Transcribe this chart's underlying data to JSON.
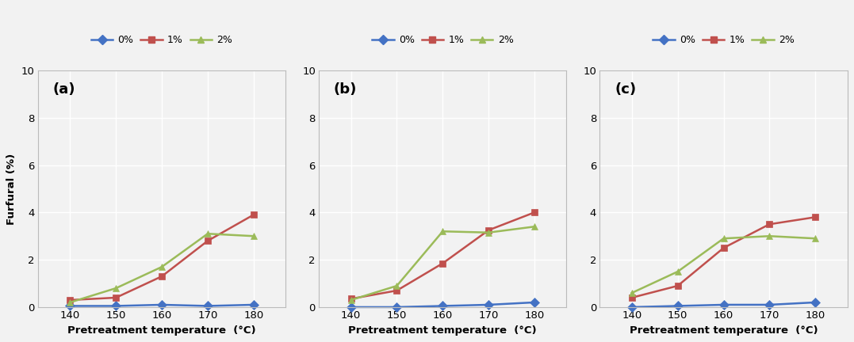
{
  "x": [
    140,
    150,
    160,
    170,
    180
  ],
  "panels": [
    {
      "label": "(a)",
      "series": {
        "0%": [
          0.05,
          0.05,
          0.1,
          0.05,
          0.1
        ],
        "1%": [
          0.3,
          0.4,
          1.3,
          2.8,
          3.9
        ],
        "2%": [
          0.2,
          0.8,
          1.7,
          3.1,
          3.0
        ]
      }
    },
    {
      "label": "(b)",
      "series": {
        "0%": [
          0.0,
          0.0,
          0.05,
          0.1,
          0.2
        ],
        "1%": [
          0.35,
          0.7,
          1.85,
          3.25,
          4.0
        ],
        "2%": [
          0.3,
          0.9,
          3.2,
          3.15,
          3.4
        ]
      }
    },
    {
      "label": "(c)",
      "series": {
        "0%": [
          0.0,
          0.05,
          0.1,
          0.1,
          0.2
        ],
        "1%": [
          0.4,
          0.9,
          2.5,
          3.5,
          3.8
        ],
        "2%": [
          0.6,
          1.5,
          2.9,
          3.0,
          2.9
        ]
      }
    }
  ],
  "colors": {
    "0%": "#4472C4",
    "1%": "#C0504D",
    "2%": "#9BBB59"
  },
  "markers": {
    "0%": "D",
    "1%": "s",
    "2%": "^"
  },
  "ylabel": "Furfural (%)",
  "xlabel": "Pretreatment temperature  (°C)",
  "ylim": [
    0,
    10
  ],
  "yticks": [
    0,
    2,
    4,
    6,
    8,
    10
  ],
  "legend_labels": [
    "0%",
    "1%",
    "2%"
  ],
  "background_color": "#f2f2f2",
  "plot_bg_color": "#f2f2f2",
  "grid_color": "#ffffff",
  "line_width": 1.8,
  "marker_size": 6
}
